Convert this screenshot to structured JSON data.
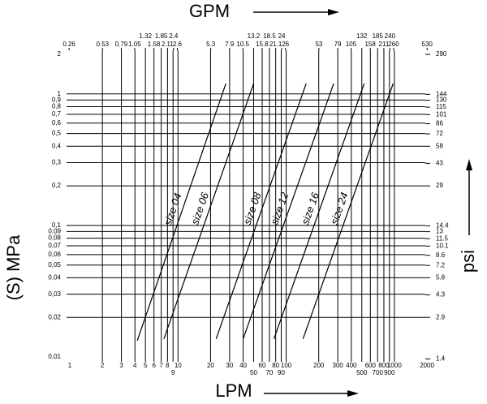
{
  "chart_data": {
    "type": "line",
    "x_label": "LPM",
    "x2_label": "GPM",
    "y_label": "(S) MPa",
    "y2_label": "psi",
    "log_x": true,
    "log_y": true,
    "grid": true,
    "color": "#000000",
    "xlim": [
      1,
      2000
    ],
    "xticks": [
      1,
      2,
      3,
      4,
      5,
      6,
      7,
      8,
      9,
      10,
      20,
      30,
      40,
      50,
      60,
      70,
      80,
      90,
      100,
      200,
      300,
      400,
      500,
      600,
      700,
      800,
      900,
      1000,
      2000
    ],
    "x2lim": [
      0.264,
      528
    ],
    "x2ticks": [
      0.26,
      0.53,
      0.79,
      1.05,
      1.32,
      1.58,
      1.85,
      2.11,
      2.4,
      2.6,
      5.3,
      7.9,
      10.5,
      13.2,
      15.8,
      18.5,
      21.1,
      24,
      26,
      53,
      79,
      105,
      132,
      158,
      185,
      211,
      240,
      260,
      530
    ],
    "ylim": [
      0.01,
      2
    ],
    "yticks": [
      {
        "value": 0.01,
        "label": "0,01"
      },
      {
        "value": 0.02,
        "label": "0,02"
      },
      {
        "value": 0.03,
        "label": "0,03"
      },
      {
        "value": 0.04,
        "label": "0,04"
      },
      {
        "value": 0.05,
        "label": "0,05"
      },
      {
        "value": 0.06,
        "label": "0,06"
      },
      {
        "value": 0.07,
        "label": "0,07"
      },
      {
        "value": 0.08,
        "label": "0,08"
      },
      {
        "value": 0.09,
        "label": "0,09"
      },
      {
        "value": 0.1,
        "label": "0,1"
      },
      {
        "value": 0.2,
        "label": "0,2"
      },
      {
        "value": 0.3,
        "label": "0,3"
      },
      {
        "value": 0.4,
        "label": "0,4"
      },
      {
        "value": 0.5,
        "label": "0,5"
      },
      {
        "value": 0.6,
        "label": "0,6"
      },
      {
        "value": 0.7,
        "label": "0,7"
      },
      {
        "value": 0.8,
        "label": "0,8"
      },
      {
        "value": 0.9,
        "label": "0,9"
      },
      1,
      2
    ],
    "y2lim": [
      1.45,
      290
    ],
    "y2ticks": [
      1.4,
      2.9,
      4.3,
      5.8,
      7.2,
      8.6,
      10.1,
      11.5,
      13,
      14.4,
      29,
      43,
      58,
      72,
      86,
      101,
      115,
      130,
      144,
      290
    ],
    "series": [
      {
        "name": "size 04",
        "x": [
          4.2,
          27.7
        ],
        "values": [
          0.0133,
          1.2
        ]
      },
      {
        "name": "size 06",
        "x": [
          7.4,
          50
        ],
        "values": [
          0.0137,
          1.2
        ]
      },
      {
        "name": "size 08",
        "x": [
          22.5,
          153
        ],
        "values": [
          0.0137,
          1.2
        ]
      },
      {
        "name": "size 12",
        "x": [
          40,
          275
        ],
        "values": [
          0.0137,
          1.2
        ]
      },
      {
        "name": "size 16",
        "x": [
          77,
          526
        ],
        "values": [
          0.0137,
          1.2
        ]
      },
      {
        "name": "size 24",
        "x": [
          143,
          975
        ],
        "values": [
          0.0137,
          1.2
        ]
      }
    ]
  }
}
